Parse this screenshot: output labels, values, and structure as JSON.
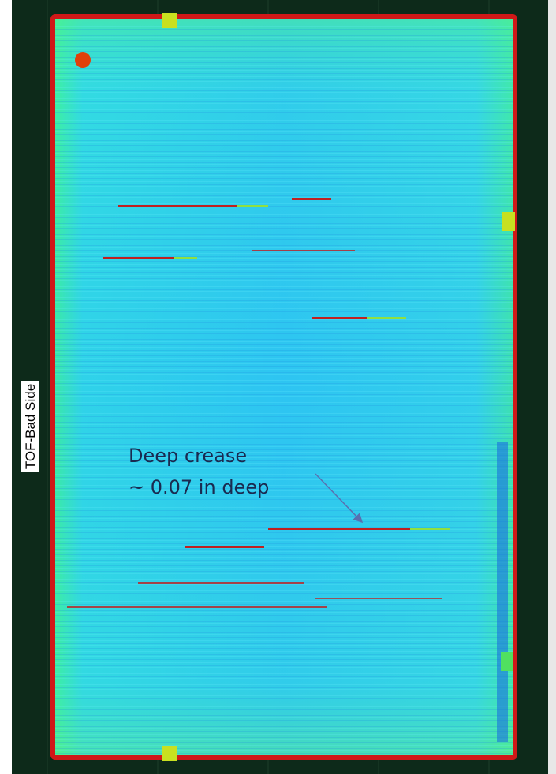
{
  "side_label": "TOF-Bad Side",
  "annotation": {
    "line1": "Deep crease",
    "line2": "~ 0.07 in deep"
  }
}
